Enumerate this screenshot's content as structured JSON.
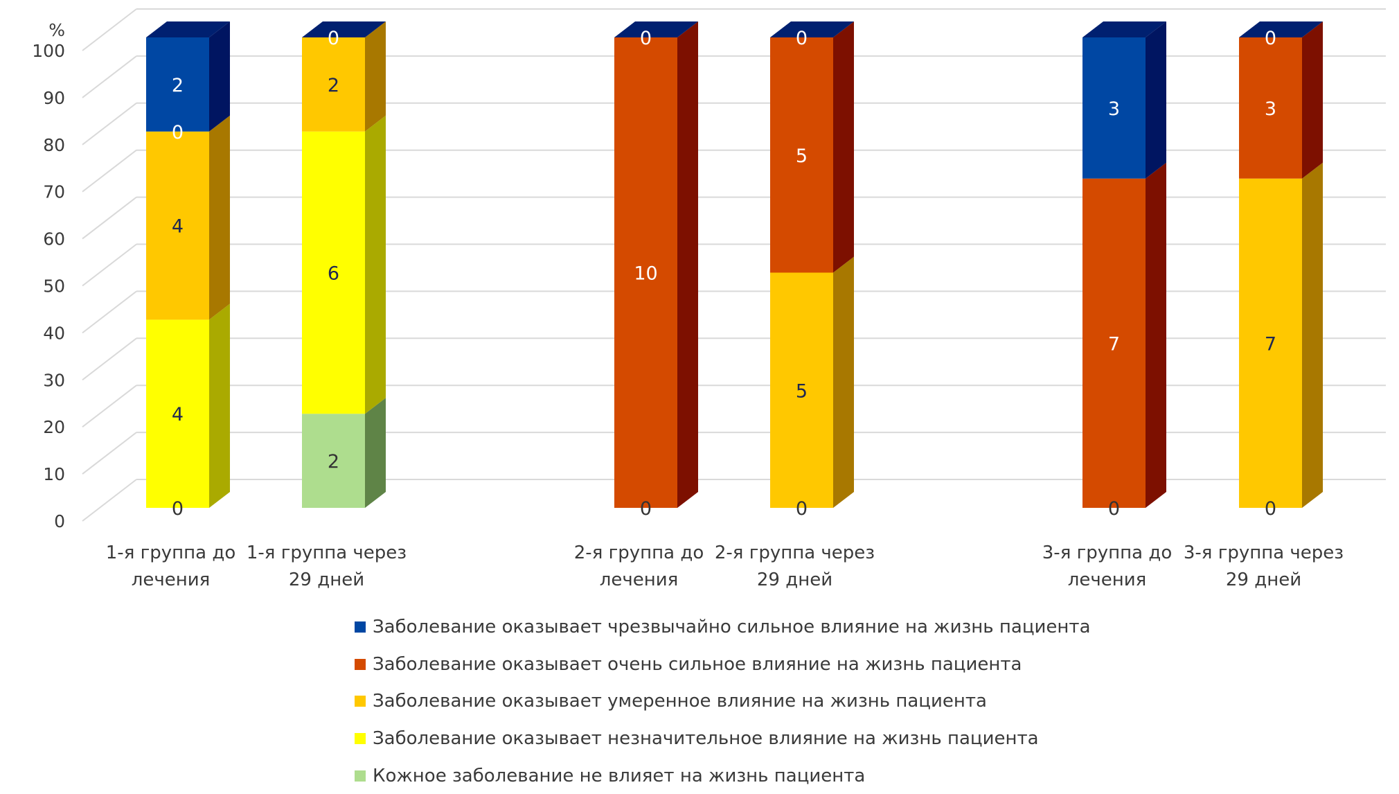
{
  "chart_data": {
    "type": "bar",
    "stacked": true,
    "percent_stacked": true,
    "three_d": true,
    "title": "",
    "ylabel": "%",
    "xlabel": "",
    "ylim": [
      0,
      100
    ],
    "yticks": [
      "0",
      "10",
      "20",
      "30",
      "40",
      "50",
      "60",
      "70",
      "80",
      "90",
      "100"
    ],
    "grid": true,
    "legend_position": "bottom",
    "categories": [
      {
        "line1": "1-я группа до",
        "line2": "лечения"
      },
      {
        "line1": "1-я группа  через",
        "line2": "29 дней"
      },
      {
        "line1": "2-я группа до",
        "line2": "лечения"
      },
      {
        "line1": "2-я группа  через",
        "line2": "29 дней"
      },
      {
        "line1": "3-я группа до",
        "line2": "лечения"
      },
      {
        "line1": "3-я группа  через",
        "line2": "29 дней"
      }
    ],
    "series": [
      {
        "name": "Кожное заболевание не влияет на жизнь пациента",
        "color": "#AEDD8E",
        "side": "#5F8447",
        "label_color": "#333333",
        "percent": [
          0,
          20,
          0,
          0,
          0,
          0
        ],
        "labels": [
          "0",
          "2",
          "0",
          "0",
          "0",
          "0"
        ]
      },
      {
        "name": "Заболевание оказывает незначительное влияние на жизнь пациента",
        "color": "#FFFF00",
        "side": "#AAAA00",
        "label_color": "#1F2750",
        "percent": [
          40,
          60,
          0,
          0,
          0,
          0
        ],
        "labels": [
          "4",
          "6",
          null,
          null,
          null,
          null
        ]
      },
      {
        "name": "Заболевание оказывает умеренное влияние на жизнь пациента",
        "color": "#FFC800",
        "side": "#A87800",
        "label_color": "#1F2750",
        "percent": [
          40,
          20,
          0,
          50,
          0,
          70
        ],
        "labels": [
          "4",
          "2",
          null,
          "5",
          null,
          "7"
        ]
      },
      {
        "name": "Заболевание оказывает очень сильное влияние на жизнь пациента",
        "color": "#D44A00",
        "side": "#7D1000",
        "label_color": "#FFFFFF",
        "percent": [
          0,
          0,
          100,
          50,
          70,
          30
        ],
        "labels": [
          "0",
          null,
          "10",
          "5",
          "7",
          "3"
        ]
      },
      {
        "name": "Заболевание оказывает чрезвычайно сильное влияние на жизнь пациента",
        "color": "#0047A3",
        "side": "#001561",
        "label_color": "#FFFFFF",
        "percent": [
          20,
          0,
          0,
          0,
          30,
          0
        ],
        "labels": [
          "2",
          "0",
          "0",
          "0",
          "3",
          "0"
        ]
      }
    ],
    "top_face_color": "#002070",
    "legend_order": [
      4,
      3,
      2,
      1,
      0
    ]
  }
}
